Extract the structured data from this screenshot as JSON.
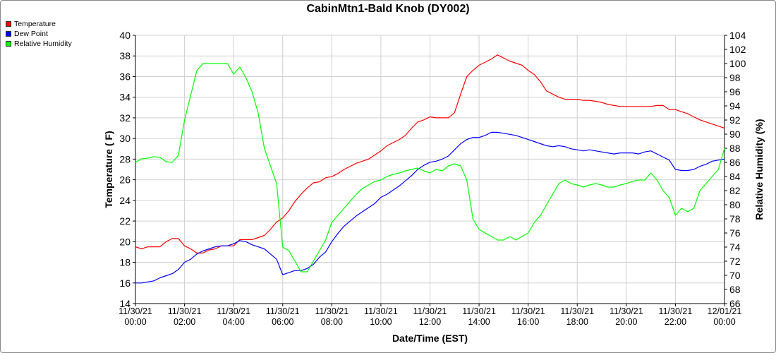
{
  "title": "CabinMtn1-Bald Knob (DY002)",
  "chart_data": {
    "type": "line",
    "title": "CabinMtn1-Bald Knob (DY002)",
    "xlabel": "Date/Time (EST)",
    "ylabel_left": "Temperature ( F)",
    "ylabel_right": "Relative Humidity (%)",
    "ylim_left": [
      14,
      40
    ],
    "ylim_right": [
      66,
      104
    ],
    "y_ticks_left": [
      14,
      16,
      18,
      20,
      22,
      24,
      26,
      28,
      30,
      32,
      34,
      36,
      38,
      40
    ],
    "y_ticks_right": [
      66,
      68,
      70,
      72,
      74,
      76,
      78,
      80,
      82,
      84,
      86,
      88,
      90,
      92,
      94,
      96,
      98,
      100,
      102,
      104
    ],
    "xlim_hours": [
      0,
      24
    ],
    "x_ticks": [
      {
        "hour": 0,
        "date": "11/30/21",
        "time": "00:00"
      },
      {
        "hour": 2,
        "date": "11/30/21",
        "time": "02:00"
      },
      {
        "hour": 4,
        "date": "11/30/21",
        "time": "04:00"
      },
      {
        "hour": 6,
        "date": "11/30/21",
        "time": "06:00"
      },
      {
        "hour": 8,
        "date": "11/30/21",
        "time": "08:00"
      },
      {
        "hour": 10,
        "date": "11/30/21",
        "time": "10:00"
      },
      {
        "hour": 12,
        "date": "11/30/21",
        "time": "12:00"
      },
      {
        "hour": 14,
        "date": "11/30/21",
        "time": "14:00"
      },
      {
        "hour": 16,
        "date": "11/30/21",
        "time": "16:00"
      },
      {
        "hour": 18,
        "date": "11/30/21",
        "time": "18:00"
      },
      {
        "hour": 20,
        "date": "11/30/21",
        "time": "20:00"
      },
      {
        "hour": 22,
        "date": "11/30/21",
        "time": "22:00"
      },
      {
        "hour": 24,
        "date": "12/01/21",
        "time": "00:00"
      }
    ],
    "grid": true,
    "legend_position": "top-left",
    "series": [
      {
        "name": "Temperature",
        "color": "#ff0000",
        "axis": "left",
        "points": [
          [
            0,
            19.5
          ],
          [
            0.25,
            19.3
          ],
          [
            0.5,
            19.5
          ],
          [
            0.75,
            19.5
          ],
          [
            1,
            19.5
          ],
          [
            1.25,
            20
          ],
          [
            1.5,
            20.3
          ],
          [
            1.75,
            20.3
          ],
          [
            2,
            19.6
          ],
          [
            2.25,
            19.3
          ],
          [
            2.5,
            18.9
          ],
          [
            2.75,
            18.9
          ],
          [
            3,
            19.2
          ],
          [
            3.25,
            19.3
          ],
          [
            3.5,
            19.6
          ],
          [
            3.75,
            19.6
          ],
          [
            4,
            19.6
          ],
          [
            4.25,
            20.2
          ],
          [
            4.5,
            20.2
          ],
          [
            4.75,
            20.2
          ],
          [
            5,
            20.4
          ],
          [
            5.25,
            20.6
          ],
          [
            5.5,
            21.2
          ],
          [
            5.75,
            21.9
          ],
          [
            6,
            22.3
          ],
          [
            6.25,
            23
          ],
          [
            6.5,
            23.9
          ],
          [
            6.75,
            24.6
          ],
          [
            7,
            25.2
          ],
          [
            7.25,
            25.7
          ],
          [
            7.5,
            25.8
          ],
          [
            7.75,
            26.2
          ],
          [
            8,
            26.3
          ],
          [
            8.25,
            26.6
          ],
          [
            8.5,
            27
          ],
          [
            8.75,
            27.3
          ],
          [
            9,
            27.6
          ],
          [
            9.25,
            27.8
          ],
          [
            9.5,
            28
          ],
          [
            9.75,
            28.4
          ],
          [
            10,
            28.8
          ],
          [
            10.25,
            29.3
          ],
          [
            10.5,
            29.6
          ],
          [
            10.75,
            29.9
          ],
          [
            11,
            30.3
          ],
          [
            11.25,
            31
          ],
          [
            11.5,
            31.6
          ],
          [
            11.75,
            31.8
          ],
          [
            12,
            32.1
          ],
          [
            12.25,
            32
          ],
          [
            12.5,
            32
          ],
          [
            12.75,
            32
          ],
          [
            13,
            32.5
          ],
          [
            13.25,
            34.3
          ],
          [
            13.5,
            36
          ],
          [
            13.75,
            36.6
          ],
          [
            14,
            37.1
          ],
          [
            14.25,
            37.4
          ],
          [
            14.5,
            37.7
          ],
          [
            14.75,
            38.1
          ],
          [
            15,
            37.8
          ],
          [
            15.25,
            37.5
          ],
          [
            15.5,
            37.3
          ],
          [
            15.75,
            37.1
          ],
          [
            16,
            36.6
          ],
          [
            16.25,
            36.2
          ],
          [
            16.5,
            35.5
          ],
          [
            16.75,
            34.6
          ],
          [
            17,
            34.3
          ],
          [
            17.25,
            34
          ],
          [
            17.5,
            33.8
          ],
          [
            17.75,
            33.8
          ],
          [
            18,
            33.8
          ],
          [
            18.25,
            33.7
          ],
          [
            18.5,
            33.7
          ],
          [
            18.75,
            33.6
          ],
          [
            19,
            33.5
          ],
          [
            19.25,
            33.3
          ],
          [
            19.5,
            33.2
          ],
          [
            19.75,
            33.1
          ],
          [
            20,
            33.1
          ],
          [
            20.25,
            33.1
          ],
          [
            20.5,
            33.1
          ],
          [
            20.75,
            33.1
          ],
          [
            21,
            33.1
          ],
          [
            21.25,
            33.2
          ],
          [
            21.5,
            33.2
          ],
          [
            21.75,
            32.8
          ],
          [
            22,
            32.8
          ],
          [
            22.25,
            32.6
          ],
          [
            22.5,
            32.4
          ],
          [
            22.75,
            32.1
          ],
          [
            23,
            31.8
          ],
          [
            23.25,
            31.6
          ],
          [
            23.5,
            31.4
          ],
          [
            23.75,
            31.2
          ],
          [
            24,
            31
          ]
        ]
      },
      {
        "name": "Dew Point",
        "color": "#0000ff",
        "axis": "left",
        "points": [
          [
            0,
            16
          ],
          [
            0.25,
            16
          ],
          [
            0.5,
            16.1
          ],
          [
            0.75,
            16.2
          ],
          [
            1,
            16.5
          ],
          [
            1.25,
            16.7
          ],
          [
            1.5,
            16.9
          ],
          [
            1.75,
            17.3
          ],
          [
            2,
            18
          ],
          [
            2.25,
            18.3
          ],
          [
            2.5,
            18.8
          ],
          [
            2.75,
            19.1
          ],
          [
            3,
            19.3
          ],
          [
            3.25,
            19.5
          ],
          [
            3.5,
            19.6
          ],
          [
            3.75,
            19.6
          ],
          [
            4,
            19.8
          ],
          [
            4.25,
            20.1
          ],
          [
            4.5,
            20
          ],
          [
            4.75,
            19.7
          ],
          [
            5,
            19.5
          ],
          [
            5.25,
            19.3
          ],
          [
            5.5,
            18.8
          ],
          [
            5.75,
            18.3
          ],
          [
            6,
            16.8
          ],
          [
            6.25,
            17
          ],
          [
            6.5,
            17.2
          ],
          [
            6.75,
            17.2
          ],
          [
            7,
            17.4
          ],
          [
            7.25,
            17.8
          ],
          [
            7.5,
            18.5
          ],
          [
            7.75,
            19
          ],
          [
            8,
            20
          ],
          [
            8.25,
            20.8
          ],
          [
            8.5,
            21.5
          ],
          [
            8.75,
            22
          ],
          [
            9,
            22.5
          ],
          [
            9.25,
            22.9
          ],
          [
            9.5,
            23.3
          ],
          [
            9.75,
            23.7
          ],
          [
            10,
            24.3
          ],
          [
            10.25,
            24.6
          ],
          [
            10.5,
            25
          ],
          [
            10.75,
            25.4
          ],
          [
            11,
            25.9
          ],
          [
            11.25,
            26.4
          ],
          [
            11.5,
            27
          ],
          [
            11.75,
            27.4
          ],
          [
            12,
            27.7
          ],
          [
            12.25,
            27.8
          ],
          [
            12.5,
            28
          ],
          [
            12.75,
            28.3
          ],
          [
            13,
            28.9
          ],
          [
            13.25,
            29.5
          ],
          [
            13.5,
            29.9
          ],
          [
            13.75,
            30.1
          ],
          [
            14,
            30.1
          ],
          [
            14.25,
            30.3
          ],
          [
            14.5,
            30.6
          ],
          [
            14.75,
            30.6
          ],
          [
            15,
            30.5
          ],
          [
            15.25,
            30.4
          ],
          [
            15.5,
            30.3
          ],
          [
            15.75,
            30.1
          ],
          [
            16,
            29.9
          ],
          [
            16.25,
            29.7
          ],
          [
            16.5,
            29.5
          ],
          [
            16.75,
            29.3
          ],
          [
            17,
            29.2
          ],
          [
            17.25,
            29.3
          ],
          [
            17.5,
            29.2
          ],
          [
            17.75,
            29
          ],
          [
            18,
            28.9
          ],
          [
            18.25,
            28.8
          ],
          [
            18.5,
            28.9
          ],
          [
            18.75,
            28.8
          ],
          [
            19,
            28.7
          ],
          [
            19.25,
            28.6
          ],
          [
            19.5,
            28.5
          ],
          [
            19.75,
            28.6
          ],
          [
            20,
            28.6
          ],
          [
            20.25,
            28.6
          ],
          [
            20.5,
            28.5
          ],
          [
            20.75,
            28.7
          ],
          [
            21,
            28.8
          ],
          [
            21.25,
            28.5
          ],
          [
            21.5,
            28.2
          ],
          [
            21.75,
            27.9
          ],
          [
            22,
            27
          ],
          [
            22.25,
            26.9
          ],
          [
            22.5,
            26.9
          ],
          [
            22.75,
            27
          ],
          [
            23,
            27.3
          ],
          [
            23.25,
            27.5
          ],
          [
            23.5,
            27.8
          ],
          [
            23.75,
            27.9
          ],
          [
            24,
            28
          ]
        ]
      },
      {
        "name": "Relative Humidity",
        "color": "#00ff00",
        "axis": "right",
        "points": [
          [
            0,
            86
          ],
          [
            0.25,
            86.5
          ],
          [
            0.5,
            86.6
          ],
          [
            0.75,
            86.8
          ],
          [
            1,
            86.7
          ],
          [
            1.25,
            86.1
          ],
          [
            1.5,
            86
          ],
          [
            1.75,
            87
          ],
          [
            2,
            92
          ],
          [
            2.25,
            95.5
          ],
          [
            2.5,
            99
          ],
          [
            2.75,
            100
          ],
          [
            3,
            100
          ],
          [
            3.25,
            100
          ],
          [
            3.5,
            100
          ],
          [
            3.75,
            100
          ],
          [
            4,
            98.5
          ],
          [
            4.25,
            99.5
          ],
          [
            4.5,
            98
          ],
          [
            4.75,
            96
          ],
          [
            5,
            93
          ],
          [
            5.25,
            88
          ],
          [
            5.5,
            85.5
          ],
          [
            5.75,
            83
          ],
          [
            6,
            74
          ],
          [
            6.25,
            73.5
          ],
          [
            6.5,
            72
          ],
          [
            6.75,
            70.5
          ],
          [
            7,
            70.5
          ],
          [
            7.25,
            72
          ],
          [
            7.5,
            73.5
          ],
          [
            7.75,
            75
          ],
          [
            8,
            77.5
          ],
          [
            8.25,
            78.5
          ],
          [
            8.5,
            79.5
          ],
          [
            8.75,
            80.5
          ],
          [
            9,
            81.5
          ],
          [
            9.25,
            82.3
          ],
          [
            9.5,
            82.8
          ],
          [
            9.75,
            83.3
          ],
          [
            10,
            83.5
          ],
          [
            10.25,
            84
          ],
          [
            10.5,
            84.3
          ],
          [
            10.75,
            84.5
          ],
          [
            11,
            84.8
          ],
          [
            11.25,
            85
          ],
          [
            11.5,
            85.2
          ],
          [
            11.75,
            84.8
          ],
          [
            12,
            84.5
          ],
          [
            12.25,
            85
          ],
          [
            12.5,
            84.8
          ],
          [
            12.75,
            85.5
          ],
          [
            13,
            85.8
          ],
          [
            13.25,
            85.5
          ],
          [
            13.5,
            83.5
          ],
          [
            13.75,
            78
          ],
          [
            14,
            76.5
          ],
          [
            14.25,
            76
          ],
          [
            14.5,
            75.5
          ],
          [
            14.75,
            75
          ],
          [
            15,
            75
          ],
          [
            15.25,
            75.5
          ],
          [
            15.5,
            75
          ],
          [
            15.75,
            75.5
          ],
          [
            16,
            76
          ],
          [
            16.25,
            77.5
          ],
          [
            16.5,
            78.5
          ],
          [
            16.75,
            80
          ],
          [
            17,
            81.5
          ],
          [
            17.25,
            83
          ],
          [
            17.5,
            83.5
          ],
          [
            17.75,
            83
          ],
          [
            18,
            82.8
          ],
          [
            18.25,
            82.5
          ],
          [
            18.5,
            82.8
          ],
          [
            18.75,
            83
          ],
          [
            19,
            82.8
          ],
          [
            19.25,
            82.5
          ],
          [
            19.5,
            82.5
          ],
          [
            19.75,
            82.8
          ],
          [
            20,
            83
          ],
          [
            20.25,
            83.3
          ],
          [
            20.5,
            83.5
          ],
          [
            20.75,
            83.5
          ],
          [
            21,
            84.5
          ],
          [
            21.25,
            83.5
          ],
          [
            21.5,
            82
          ],
          [
            21.75,
            81
          ],
          [
            22,
            78.5
          ],
          [
            22.25,
            79.5
          ],
          [
            22.5,
            79
          ],
          [
            22.75,
            79.5
          ],
          [
            23,
            82
          ],
          [
            23.25,
            83
          ],
          [
            23.5,
            84
          ],
          [
            23.75,
            85
          ],
          [
            24,
            88
          ]
        ]
      }
    ]
  }
}
